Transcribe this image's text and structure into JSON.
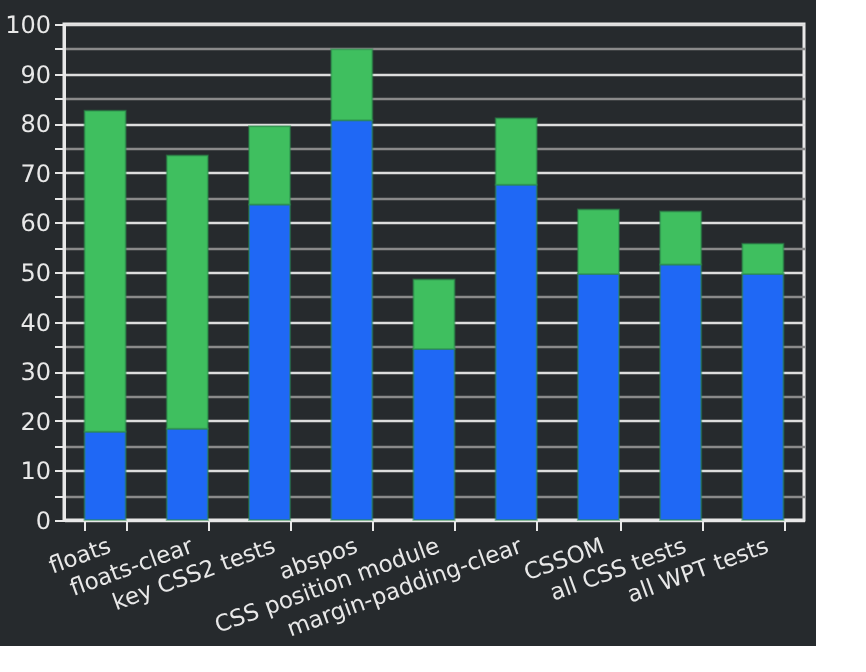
{
  "chart_data": {
    "type": "bar",
    "stacked": true,
    "categories": [
      "floats",
      "floats-clear",
      "key CSS2 tests",
      "abspos",
      "CSS position module",
      "margin-padding-clear",
      "CSSOM",
      "all CSS tests",
      "all WPT tests"
    ],
    "series": [
      {
        "color": "#1f68f5",
        "values": [
          17.8,
          18.4,
          63.6,
          80.6,
          34.5,
          67.6,
          49.6,
          51.5,
          49.6
        ]
      },
      {
        "color": "#3fbf5f",
        "values": [
          64.7,
          55.1,
          15.8,
          14.3,
          14.0,
          13.4,
          13.0,
          10.7,
          6.1
        ]
      }
    ],
    "ylim": [
      0,
      100
    ],
    "yticks": [
      0,
      {
        "value": 5,
        "label": null
      },
      10,
      {
        "value": 15,
        "label": null
      },
      20,
      {
        "value": 25,
        "label": null
      },
      30,
      {
        "value": 35,
        "label": null
      },
      40,
      {
        "value": 45,
        "label": null
      },
      50,
      {
        "value": 55,
        "label": null
      },
      60,
      {
        "value": 65,
        "label": null
      },
      70,
      {
        "value": 75,
        "label": null
      },
      80,
      {
        "value": 85,
        "label": null
      },
      90,
      {
        "value": 95,
        "label": null
      },
      100
    ],
    "grid": "y",
    "legend": false
  }
}
